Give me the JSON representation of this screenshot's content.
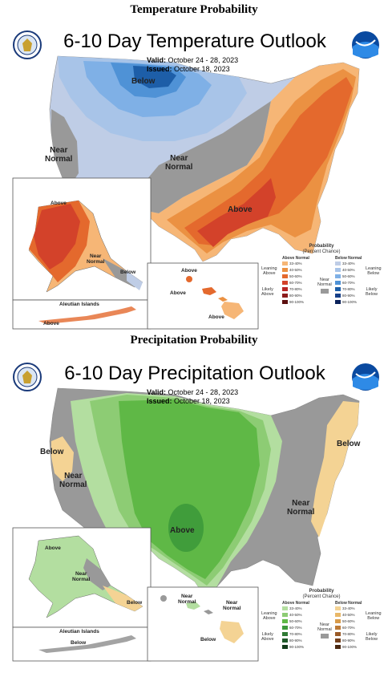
{
  "temperature": {
    "section_title": "Temperature Probability",
    "title": "6-10 Day Temperature Outlook",
    "valid_label": "Valid:",
    "valid_dates": "October 24 - 28, 2023",
    "issued_label": "Issued:",
    "issued_date": "October 18, 2023",
    "labels": {
      "below_north": "Below",
      "near_normal_west": "Near\nNormal",
      "near_normal_central": "Near\nNormal",
      "above_south": "Above",
      "alaska_above": "Above",
      "alaska_near_normal": "Near\nNormal",
      "alaska_below": "Below",
      "hawaii_above_1": "Above",
      "hawaii_above_2": "Above",
      "hawaii_above_3": "Above",
      "aleutian_above": "Above",
      "aleutian_title": "Aleutian Islands"
    },
    "legend": {
      "title": "Probability",
      "subtitle": "(Percent Chance)",
      "above_head": "Above Normal",
      "below_head": "Below Normal",
      "leaning_above": "Leaning\nAbove",
      "likely_above": "Likely\nAbove",
      "near_normal": "Near\nNormal",
      "leaning_below": "Leaning\nBelow",
      "likely_below": "Likely\nBelow",
      "above_bins": [
        "33-40%",
        "40-50%",
        "50-60%",
        "60-70%",
        "70-80%",
        "80-90%",
        "90-100%"
      ],
      "below_bins": [
        "33-40%",
        "40-50%",
        "50-60%",
        "60-70%",
        "70-80%",
        "80-90%",
        "90-100%"
      ],
      "above_colors": [
        "#f6b676",
        "#eb9142",
        "#e4692d",
        "#d3422a",
        "#b82525",
        "#8c1b1b",
        "#5c0f0f"
      ],
      "below_colors": [
        "#bfcde6",
        "#a8c4e8",
        "#7fb0e6",
        "#4f92d6",
        "#1d5ea8",
        "#163f88",
        "#0b225a"
      ],
      "near_color": "#999999"
    }
  },
  "precipitation": {
    "section_title": "Precipitation Probability",
    "title": "6-10 Day Precipitation Outlook",
    "valid_label": "Valid:",
    "valid_dates": "October 24 - 28, 2023",
    "issued_label": "Issued:",
    "issued_date": "October 18, 2023",
    "labels": {
      "below_west": "Below",
      "near_normal_west": "Near\nNormal",
      "above_south": "Above",
      "below_east": "Below",
      "near_normal_east": "Near\nNormal",
      "alaska_above": "Above",
      "alaska_near_normal": "Near\nNormal",
      "alaska_below": "Below",
      "hawaii_near_normal_1": "Near\nNormal",
      "hawaii_near_normal_2": "Near\nNormal",
      "hawaii_below": "Below",
      "aleutian_below": "Below",
      "aleutian_title": "Aleutian Islands"
    },
    "legend": {
      "title": "Probability",
      "subtitle": "(Percent Chance)",
      "above_head": "Above Normal",
      "below_head": "Below Normal",
      "leaning_above": "Leaning\nAbove",
      "likely_above": "Likely\nAbove",
      "near_normal": "Near\nNormal",
      "leaning_below": "Leaning\nBelow",
      "likely_below": "Likely\nBelow",
      "above_bins": [
        "33-40%",
        "40-50%",
        "50-60%",
        "60-70%",
        "70-80%",
        "80-90%",
        "90-100%"
      ],
      "below_bins": [
        "33-40%",
        "40-50%",
        "50-60%",
        "60-70%",
        "70-80%",
        "80-90%",
        "90-100%"
      ],
      "above_colors": [
        "#b3dea0",
        "#8dcc74",
        "#5fb846",
        "#3d9a3a",
        "#2f7a34",
        "#205a2a",
        "#123b1a"
      ],
      "below_colors": [
        "#f4d394",
        "#e9b868",
        "#d89b4a",
        "#bd7a36",
        "#9a5b28",
        "#74401c",
        "#4a2810"
      ],
      "near_color": "#999999"
    }
  },
  "colors": {
    "temp_above_1": "#f6b676",
    "temp_above_2": "#eb9142",
    "temp_above_3": "#e4692d",
    "temp_above_4": "#d3422a",
    "temp_below_1": "#bfcde6",
    "temp_below_2": "#a8c4e8",
    "temp_below_3": "#7fb0e6",
    "temp_below_4": "#4f92d6",
    "temp_below_5": "#1d5ea8",
    "precip_above_1": "#b3dea0",
    "precip_above_2": "#8dcc74",
    "precip_above_3": "#5fb846",
    "precip_above_4": "#3d9a3a",
    "precip_below_1": "#f4d394",
    "near_normal": "#999999"
  }
}
